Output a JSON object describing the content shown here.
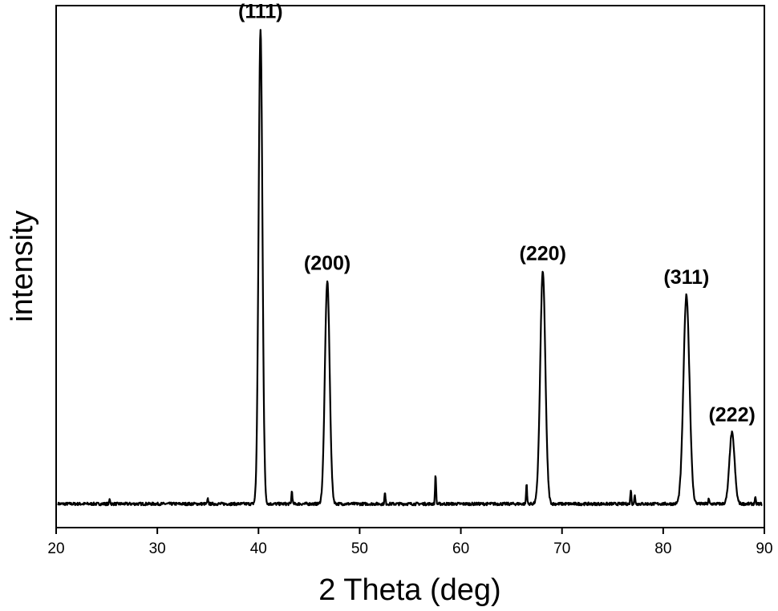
{
  "chart_data": {
    "type": "line",
    "xlabel": "2 Theta (deg)",
    "ylabel": "intensity",
    "xlim": [
      20,
      90
    ],
    "ylim": [
      -20,
      420
    ],
    "x_ticks": [
      20,
      30,
      40,
      50,
      60,
      70,
      80,
      90
    ],
    "y_ticks_shown": false,
    "grid": false,
    "colors": {
      "line": "#000000",
      "axis": "#000000"
    },
    "baseline": 0,
    "peaks": [
      {
        "label": "(111)",
        "x": 40.2,
        "height": 400,
        "width": 0.45
      },
      {
        "label": "(200)",
        "x": 46.8,
        "height": 188,
        "width": 0.55
      },
      {
        "label": "(220)",
        "x": 68.1,
        "height": 196,
        "width": 0.6
      },
      {
        "label": "(311)",
        "x": 82.3,
        "height": 176,
        "width": 0.7
      },
      {
        "label": "(222)",
        "x": 86.8,
        "height": 60,
        "width": 0.6
      }
    ],
    "minor_peaks": [
      {
        "x": 25.3,
        "height": 4
      },
      {
        "x": 35.0,
        "height": 4
      },
      {
        "x": 43.3,
        "height": 11
      },
      {
        "x": 52.5,
        "height": 9
      },
      {
        "x": 57.5,
        "height": 25
      },
      {
        "x": 66.5,
        "height": 17
      },
      {
        "x": 76.8,
        "height": 12
      },
      {
        "x": 77.2,
        "height": 7
      },
      {
        "x": 84.5,
        "height": 4
      },
      {
        "x": 89.1,
        "height": 5
      }
    ]
  }
}
